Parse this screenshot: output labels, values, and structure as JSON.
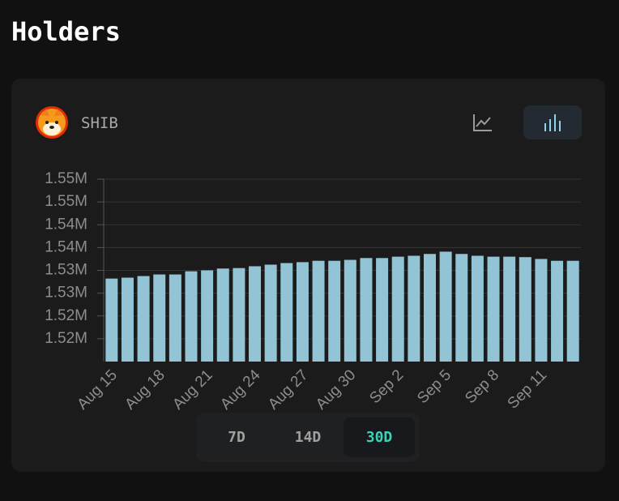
{
  "header": {
    "title": "Holders"
  },
  "card": {
    "symbol": "SHIB",
    "chart_mode": 1
  },
  "ranges": {
    "options": [
      "7D",
      "14D",
      "30D"
    ],
    "active": 2
  },
  "chart_data": {
    "type": "bar",
    "color": "#92c4d6",
    "grid": true,
    "categories": [
      "Aug 15",
      null,
      null,
      "Aug 18",
      null,
      null,
      "Aug 21",
      null,
      null,
      "Aug 24",
      null,
      null,
      "Aug 27",
      null,
      null,
      "Aug 30",
      null,
      null,
      "Sep 2",
      null,
      null,
      "Sep 5",
      null,
      null,
      "Sep 8",
      null,
      null,
      "Sep 11",
      null,
      null
    ],
    "values": [
      1528200,
      1528400,
      1528750,
      1529100,
      1529100,
      1529800,
      1530000,
      1530400,
      1530500,
      1530900,
      1531250,
      1531600,
      1531800,
      1532100,
      1532100,
      1532300,
      1532700,
      1532700,
      1533000,
      1533200,
      1533600,
      1534100,
      1533600,
      1533200,
      1533000,
      1533000,
      1532900,
      1532500,
      1532100,
      1532100
    ],
    "ylim": [
      1510000,
      1550000
    ],
    "yticks": [
      {
        "value": 1515000,
        "label": "1.52M"
      },
      {
        "value": 1520000,
        "label": "1.52M"
      },
      {
        "value": 1525000,
        "label": "1.53M"
      },
      {
        "value": 1530000,
        "label": "1.53M"
      },
      {
        "value": 1535000,
        "label": "1.54M"
      },
      {
        "value": 1540000,
        "label": "1.54M"
      },
      {
        "value": 1545000,
        "label": "1.55M"
      },
      {
        "value": 1550000,
        "label": "1.55M"
      }
    ]
  }
}
